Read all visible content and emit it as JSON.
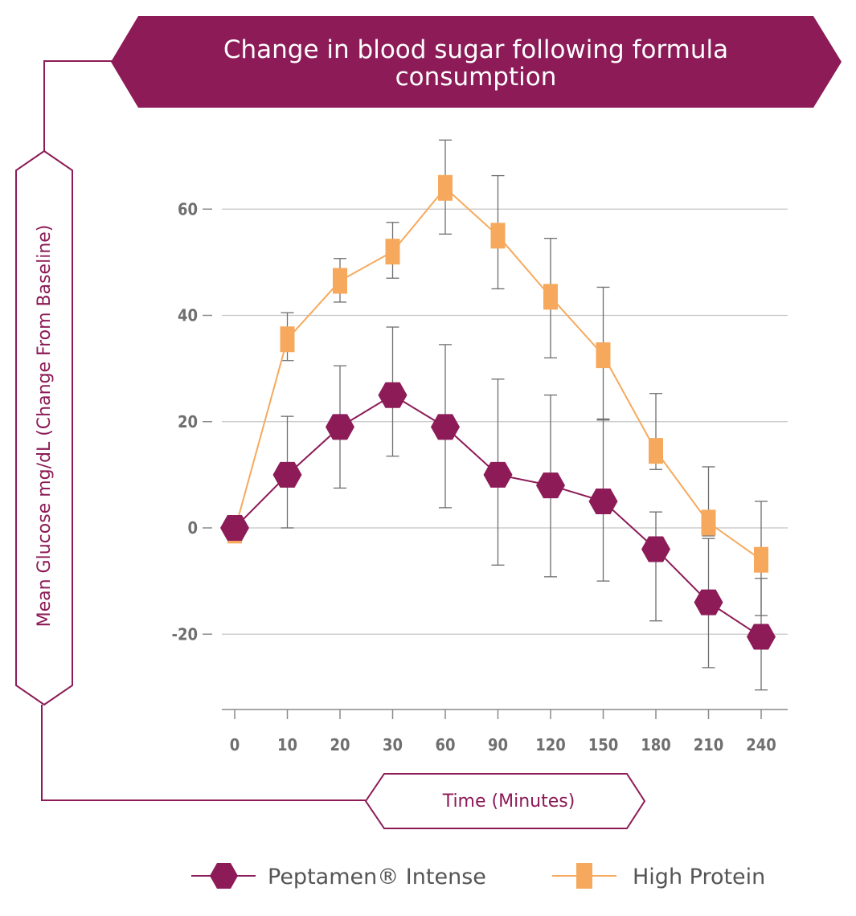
{
  "chart_data": {
    "type": "line",
    "title_lines": [
      "Change in blood sugar following formula",
      "consumption"
    ],
    "ylabel": "Mean Glucose mg/dL (Change From Baseline)",
    "xlabel": "Time (Minutes)",
    "categories": [
      "0",
      "10",
      "20",
      "30",
      "60",
      "90",
      "120",
      "150",
      "180",
      "210",
      "240"
    ],
    "y_ticks": [
      "60",
      "40",
      "20",
      "0",
      "-20"
    ],
    "y_tick_values": [
      60,
      40,
      20,
      0,
      -20
    ],
    "ylim": [
      -34,
      70
    ],
    "grid": true,
    "legend_position": "bottom",
    "series": [
      {
        "name": "Peptamen® Intense",
        "marker": "hexagon",
        "color": "#8c1b57",
        "values": [
          0,
          10,
          19,
          25,
          19,
          10,
          8,
          5,
          -4,
          -14,
          -20.5
        ],
        "error_low": [
          null,
          0,
          7.5,
          13.5,
          3.8,
          -7,
          -9.2,
          -10,
          -17.5,
          -26.3,
          -30.5
        ],
        "error_high": [
          null,
          21,
          30.5,
          37.8,
          34.5,
          28,
          25,
          20.5,
          3,
          -2,
          -9.5
        ]
      },
      {
        "name": "High Protein",
        "marker": "square",
        "color": "#f6a95c",
        "values": [
          -0.5,
          35.5,
          46.5,
          52,
          64,
          55,
          43.5,
          32.5,
          14.5,
          1,
          -6
        ],
        "error_low": [
          null,
          31.5,
          42.5,
          47,
          55.3,
          45,
          32,
          20.3,
          11,
          -1.5,
          -16.5
        ],
        "error_high": [
          null,
          40.5,
          50.7,
          57.5,
          73,
          66.3,
          54.5,
          45.3,
          25.3,
          11.5,
          5
        ]
      }
    ]
  }
}
